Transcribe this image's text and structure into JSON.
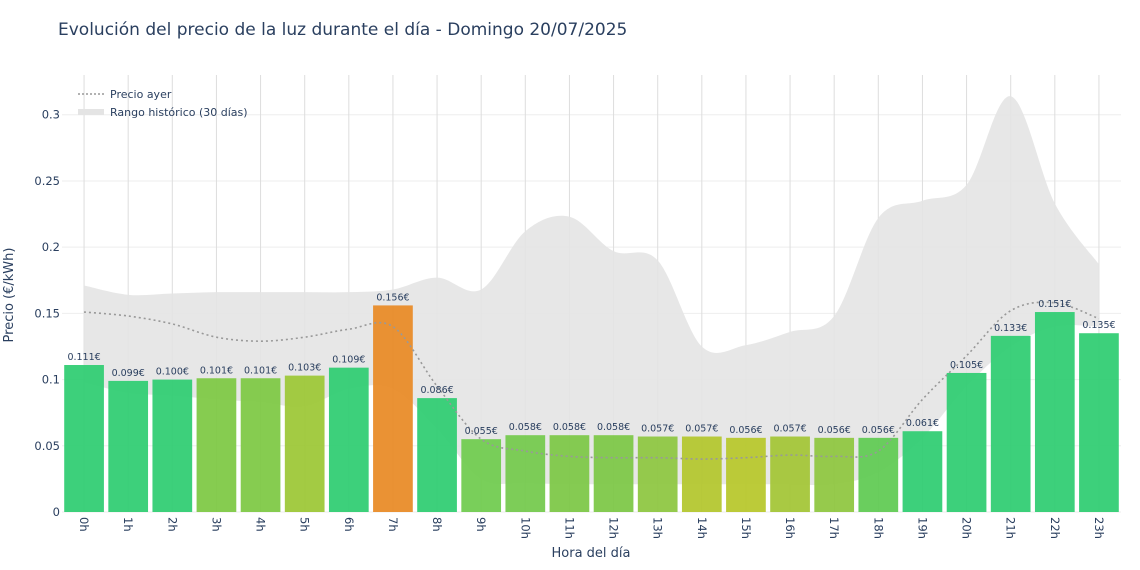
{
  "chart_data": {
    "type": "bar",
    "title": "Evolución del precio de la luz durante el día - Domingo 20/07/2025",
    "xlabel": "Hora del día",
    "ylabel": "Precio (€/kWh)",
    "ylim": [
      0,
      0.33
    ],
    "yticks": [
      {
        "value": 0,
        "label": "0"
      },
      {
        "value": 0.05,
        "label": "0.05"
      },
      {
        "value": 0.1,
        "label": "0.1"
      },
      {
        "value": 0.15,
        "label": "0.15"
      },
      {
        "value": 0.2,
        "label": "0.2"
      },
      {
        "value": 0.25,
        "label": "0.25"
      },
      {
        "value": 0.3,
        "label": "0.3"
      }
    ],
    "grid": true,
    "legend_position": "top-left",
    "categories": [
      "0h",
      "1h",
      "2h",
      "3h",
      "4h",
      "5h",
      "6h",
      "7h",
      "8h",
      "9h",
      "10h",
      "11h",
      "12h",
      "13h",
      "14h",
      "15h",
      "16h",
      "17h",
      "18h",
      "19h",
      "20h",
      "21h",
      "22h",
      "23h"
    ],
    "series": [
      {
        "type": "bar",
        "values": [
          0.111,
          0.099,
          0.1,
          0.101,
          0.101,
          0.103,
          0.109,
          0.156,
          0.086,
          0.055,
          0.058,
          0.058,
          0.058,
          0.057,
          0.057,
          0.056,
          0.057,
          0.056,
          0.056,
          0.061,
          0.105,
          0.133,
          0.151,
          0.135
        ],
        "data_labels": [
          "0.111€",
          "0.099€",
          "0.100€",
          "0.101€",
          "0.101€",
          "0.103€",
          "0.109€",
          "0.156€",
          "0.086€",
          "0.055€",
          "0.058€",
          "0.058€",
          "0.058€",
          "0.057€",
          "0.057€",
          "0.056€",
          "0.057€",
          "0.056€",
          "0.056€",
          "0.061€",
          "0.105€",
          "0.133€",
          "0.151€",
          "0.135€"
        ],
        "colors": [
          "#2ecc71",
          "#2ecc71",
          "#2ecc71",
          "#7dc843",
          "#7dc843",
          "#9cc735",
          "#2ecc71",
          "#e88a25",
          "#2ecc71",
          "#6fcb4e",
          "#73c94b",
          "#7cc745",
          "#7cc745",
          "#8dc63f",
          "#b3c62c",
          "#b7c72a",
          "#a3c535",
          "#8ec63e",
          "#5fca52",
          "#2ecc71",
          "#2ecc71",
          "#2ecc71",
          "#2ecc71",
          "#2ecc71"
        ]
      },
      {
        "name": "Precio ayer",
        "type": "line",
        "style": "dotted",
        "color": "#999999",
        "values": [
          0.151,
          0.148,
          0.142,
          0.132,
          0.129,
          0.132,
          0.138,
          0.14,
          0.095,
          0.055,
          0.046,
          0.042,
          0.041,
          0.041,
          0.04,
          0.041,
          0.043,
          0.042,
          0.046,
          0.085,
          0.118,
          0.152,
          0.158,
          0.146
        ]
      },
      {
        "name": "Rango histórico (30 días)",
        "type": "area",
        "color": "#e4e4e4",
        "upper": [
          0.171,
          0.164,
          0.165,
          0.166,
          0.166,
          0.166,
          0.166,
          0.168,
          0.177,
          0.168,
          0.212,
          0.223,
          0.197,
          0.19,
          0.125,
          0.126,
          0.136,
          0.148,
          0.222,
          0.235,
          0.247,
          0.314,
          0.233,
          0.187
        ],
        "lower": [
          0.098,
          0.09,
          0.088,
          0.085,
          0.083,
          0.08,
          0.093,
          0.093,
          0.063,
          0.025,
          0.022,
          0.021,
          0.021,
          0.021,
          0.021,
          0.021,
          0.021,
          0.021,
          0.03,
          0.056,
          0.095,
          0.125,
          0.14,
          0.14
        ]
      }
    ]
  }
}
